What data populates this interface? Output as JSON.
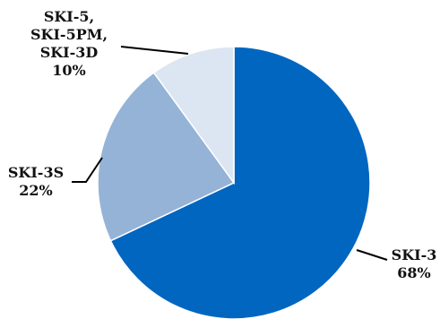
{
  "chart_data": {
    "type": "pie",
    "start_angle_deg": 0,
    "direction": "clockwise",
    "slices": [
      {
        "label_lines": [
          "SKI-3"
        ],
        "percent_text": "68%",
        "value": 68,
        "color": "#0066C0"
      },
      {
        "label_lines": [
          "SKI-3S"
        ],
        "percent_text": "22%",
        "value": 22,
        "color": "#95B3D7"
      },
      {
        "label_lines": [
          "SKI-5,",
          "SKI-5PM,",
          "SKI-3D"
        ],
        "percent_text": "10%",
        "value": 10,
        "color": "#DCE6F2"
      }
    ]
  }
}
